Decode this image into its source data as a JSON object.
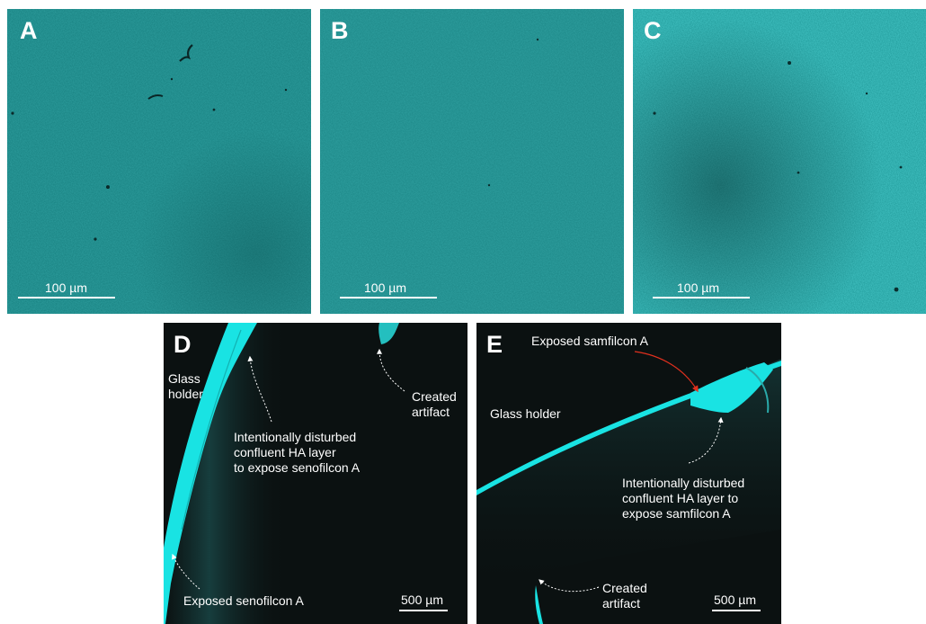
{
  "panels": {
    "a": {
      "letter": "A",
      "scale": "100 µm"
    },
    "b": {
      "letter": "B",
      "scale": "100 µm"
    },
    "c": {
      "letter": "C",
      "scale": "100 µm"
    },
    "d": {
      "letter": "D",
      "scale": "500 µm",
      "glass_holder_line1": "Glass",
      "glass_holder_line2": "holder",
      "disturbed_line1": "Intentionally disturbed",
      "disturbed_line2": "confluent HA layer",
      "disturbed_line3": "to expose senofilcon A",
      "artifact_line1": "Created",
      "artifact_line2": "artifact",
      "exposed": "Exposed senofilcon A"
    },
    "e": {
      "letter": "E",
      "scale": "500 µm",
      "exposed": "Exposed samfilcon A",
      "glass_holder": "Glass holder",
      "disturbed_line1": "Intentionally disturbed",
      "disturbed_line2": "confluent HA layer to",
      "disturbed_line3": "expose samfilcon A",
      "artifact_line1": "Created",
      "artifact_line2": "artifact"
    }
  },
  "colors": {
    "teal_field": "#167f7f",
    "cyan_bright": "#19e3e3",
    "dark_field": "#0b1111",
    "arrow_red": "#e0301e",
    "arrow_white": "#ffffff"
  }
}
